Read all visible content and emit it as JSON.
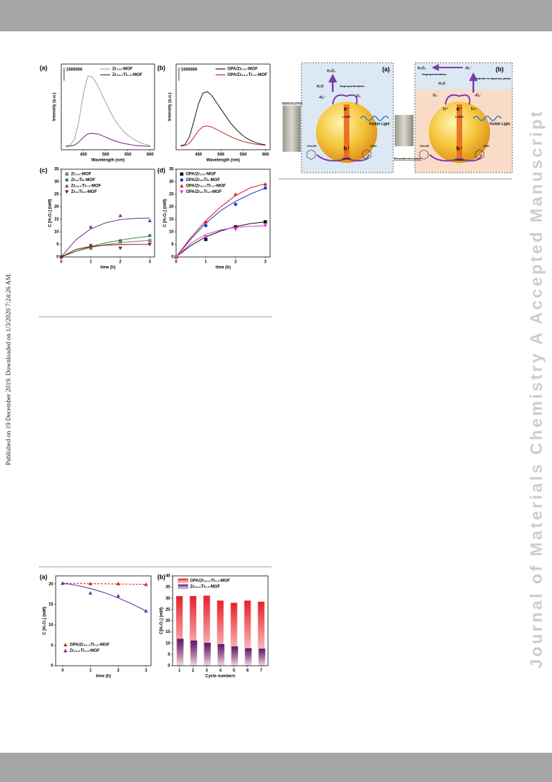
{
  "side_note": "Published on 19 December 2019. Downloaded on 1/3/2020 7:24:26 AM.",
  "watermark": "Journal of Materials Chemistry A Accepted Manuscript",
  "figure_1": {
    "panels": [
      {
        "type": "line",
        "label": "(a)",
        "xlabel": "Wavelength (nm)",
        "ylabel": "Intensity (a.u.)",
        "legend": "upper right",
        "scale_bar": {
          "value": 1000000,
          "label": "1000000"
        },
        "xlim": [
          400,
          610
        ],
        "xticks": [
          450,
          500,
          550,
          600
        ],
        "ylim": [
          0,
          6500000
        ],
        "x": [
          410,
          420,
          430,
          440,
          450,
          460,
          470,
          480,
          490,
          500,
          510,
          520,
          530,
          540,
          550,
          560,
          570,
          580,
          590,
          600
        ],
        "series": [
          {
            "name": "Zr₁₀₀-MOF",
            "color": "#a0a0a0",
            "values": [
              300000,
              350000,
              800000,
              2200000,
              4300000,
              5600000,
              5500000,
              5000000,
              4300000,
              3600000,
              2900000,
              2300000,
              1800000,
              1400000,
              1100000,
              850000,
              650000,
              500000,
              400000,
              330000
            ]
          },
          {
            "name": "Zr₉₂.₅Ti₇.₅-MOF",
            "color": "#6a1a7a",
            "values": [
              250000,
              270000,
              350000,
              600000,
              950000,
              1200000,
              1250000,
              1200000,
              1100000,
              950000,
              800000,
              680000,
              570000,
              480000,
              420000,
              360000,
              320000,
              290000,
              270000,
              250000
            ]
          }
        ]
      },
      {
        "type": "line",
        "label": "(b)",
        "xlabel": "Wavelength (nm)",
        "ylabel": "Intensity (a.u.)",
        "legend": "upper right",
        "scale_bar": {
          "value": 1000000,
          "label": "1000000"
        },
        "xlim": [
          400,
          610
        ],
        "xticks": [
          450,
          500,
          550,
          600
        ],
        "ylim": [
          0,
          6500000
        ],
        "x": [
          410,
          420,
          430,
          440,
          450,
          460,
          470,
          480,
          490,
          500,
          510,
          520,
          530,
          540,
          550,
          560,
          570,
          580,
          590,
          600
        ],
        "series": [
          {
            "name": "OPA/Zr₁₀₀-MOF",
            "color": "#111111",
            "values": [
              300000,
              400000,
              1000000,
              2200000,
              3500000,
              4300000,
              4400000,
              4100000,
              3600000,
              3100000,
              2600000,
              2100000,
              1700000,
              1350000,
              1050000,
              820000,
              650000,
              520000,
              430000,
              360000
            ]
          },
          {
            "name": "OPA/Zr₉₂.₅Ti₇.₅-MOF",
            "color": "#b8231e",
            "values": [
              270000,
              300000,
              500000,
              950000,
              1450000,
              1750000,
              1800000,
              1720000,
              1550000,
              1380000,
              1200000,
              1020000,
              870000,
              740000,
              630000,
              540000,
              470000,
              410000,
              370000,
              330000
            ]
          }
        ]
      },
      {
        "type": "scatter_fit",
        "label": "(c)",
        "xlabel": "time (h)",
        "ylabel": "C [H₂O₂] (mM)",
        "legend": "upper left",
        "xlim": [
          0,
          3.16
        ],
        "xticks": [
          0,
          1,
          2,
          3
        ],
        "ylim": [
          0,
          35
        ],
        "yticks": [
          0,
          5,
          10,
          15,
          20,
          25,
          30,
          35
        ],
        "x": [
          0,
          1,
          2,
          3
        ],
        "fit_x": [
          0,
          0.5,
          1,
          1.5,
          2,
          2.5,
          3
        ],
        "series": [
          {
            "name": "Zr₁₀₀-MOF",
            "color": "#808080",
            "marker": "square",
            "values": [
              0,
              3.5,
              6,
              6.5
            ],
            "fit": [
              0,
              2.2,
              3.8,
              4.9,
              5.7,
              6.2,
              6.6
            ]
          },
          {
            "name": "Zr₉₅Ti₅-MOF",
            "color": "#3a8a3a",
            "marker": "circle",
            "values": [
              0,
              4,
              6.5,
              8.5
            ],
            "fit": [
              0,
              2.3,
              4.1,
              5.6,
              6.7,
              7.6,
              8.3
            ]
          },
          {
            "name": "Zr₉₂.₅Ti₇.₅-MOF",
            "color": "#7b3a96",
            "marker": "triangle",
            "values": [
              0,
              12,
              16.5,
              14.5
            ],
            "fit": [
              0,
              6.9,
              11.2,
              13.6,
              14.9,
              15.4,
              15.5
            ]
          },
          {
            "name": "Zr₉₀Ti₁₀-MOF",
            "color": "#8b1a1a",
            "marker": "triangle-down",
            "values": [
              0,
              4.5,
              3.5,
              5
            ],
            "fit": [
              0,
              3,
              4.2,
              4.7,
              4.9,
              5,
              5
            ]
          }
        ]
      },
      {
        "type": "scatter_fit",
        "label": "(d)",
        "xlabel": "time (h)",
        "ylabel": "C [H₂O₂] (mM)",
        "legend": "upper left",
        "xlim": [
          0,
          3.16
        ],
        "xticks": [
          0,
          1,
          2,
          3
        ],
        "ylim": [
          0,
          35
        ],
        "yticks": [
          0,
          5,
          10,
          15,
          20,
          25,
          30,
          35
        ],
        "x": [
          0,
          1,
          2,
          3
        ],
        "fit_x": [
          0,
          0.5,
          1,
          1.5,
          2,
          2.5,
          3
        ],
        "series": [
          {
            "name": "OPA/Zr₁₀₀-MOF",
            "color": "#111111",
            "marker": "square",
            "values": [
              0,
              7,
              12,
              14
            ],
            "fit": [
              0,
              4.6,
              8,
              10.4,
              12.1,
              13.3,
              14
            ]
          },
          {
            "name": "OPA/Zr₉₅Ti₅-MOF",
            "color": "#1f3fd0",
            "marker": "circle",
            "values": [
              0,
              12.5,
              21,
              27.5
            ],
            "fit": [
              0,
              7.2,
              13.5,
              18.5,
              22.2,
              25.1,
              27.5
            ]
          },
          {
            "name": "OPA/Zr₉₂.₅Ti₇.₅-MOF",
            "color": "#d62020",
            "marker": "triangle",
            "values": [
              0,
              14,
              25,
              29
            ],
            "fit": [
              0,
              7.8,
              14.5,
              20,
              24.5,
              27.6,
              29.2
            ]
          },
          {
            "name": "OPA/Zr₉₀Ti₁₀-MOF",
            "color": "#e040e0",
            "marker": "triangle-down",
            "values": [
              0,
              8,
              11,
              12.5
            ],
            "fit": [
              0,
              5.5,
              9,
              10.8,
              11.8,
              12.2,
              12.4
            ]
          }
        ]
      }
    ]
  },
  "figure_2": {
    "panels": [
      {
        "label": "(a)",
        "product": "H₂O₂",
        "water": "H₂O",
        "process": "disproportionation",
        "radical": "•O₂⁻",
        "oxygen": "O₂",
        "electron": "e⁻",
        "lumo": "LUMO",
        "light": "Visible Light",
        "hole": "h⁺",
        "homo": "HOMO",
        "phase": "Aqueous phase",
        "reactant": "CH₂OH",
        "aldehyde": "CHO"
      },
      {
        "label": "(b)",
        "product": "H₂O₂",
        "process": "disproportionation",
        "radical_top": "•O₂⁻",
        "transfer": "transfer to aqueous phase",
        "water": "H₂O",
        "oxygen": "O₂",
        "radical": "•O₂⁻",
        "ti3": "Ti³⁺",
        "electron": "e⁻",
        "ti4": "Ti⁴⁺",
        "lumo": "LUMO",
        "light": "Visible Light",
        "hole": "h⁺",
        "homo": "HOMO",
        "phase": "Benzylalcohol phase",
        "reactant": "CH₂OH",
        "aldehyde": "CHO"
      }
    ]
  },
  "figure_3": {
    "panels": [
      {
        "type": "scatter_fit",
        "label": "(a)",
        "xlabel": "time (h)",
        "ylabel": "C [H₂O₂] (mM)",
        "legend": "lower left",
        "xlim": [
          -0.25,
          3.18
        ],
        "xticks": [
          0,
          1,
          2,
          3
        ],
        "ylim": [
          0,
          22
        ],
        "yticks": [
          0,
          5,
          10,
          15,
          20
        ],
        "x": [
          0,
          1,
          2,
          3
        ],
        "fit_x": [
          0,
          0.5,
          1,
          1.5,
          2,
          2.5,
          3
        ],
        "series": [
          {
            "name": "OPA/Zr₉₂.₅Ti₇.₅-MOF",
            "color": "#d42020",
            "marker": "triangle",
            "dash": true,
            "values": [
              20.2,
              20.1,
              20.1,
              19.9
            ],
            "fit": [
              20.2,
              20.15,
              20.1,
              20.05,
              20,
              19.95,
              19.9
            ]
          },
          {
            "name": "Zr₉₂.₅Ti₇.₅-MOF",
            "color": "#7030a0",
            "marker": "triangle",
            "values": [
              20.2,
              17.8,
              17.1,
              13.4
            ],
            "fit": [
              20.2,
              19.7,
              18.9,
              17.9,
              16.6,
              15.1,
              13.4
            ]
          }
        ]
      },
      {
        "type": "bar",
        "label": "(b)",
        "xlabel": "Cycle numbers",
        "ylabel": "C[H₂O₂] (mM)",
        "legend": "upper left",
        "ylim": [
          0,
          40
        ],
        "yticks": [
          0,
          5,
          10,
          15,
          20,
          25,
          30,
          35,
          40
        ],
        "categories": [
          "1",
          "2",
          "3",
          "4",
          "5",
          "6",
          "7"
        ],
        "series": [
          {
            "name": "OPA/Zr₉₂.₅Ti₇.₅-MOF",
            "color": "#e8202a",
            "values": [
              31,
              31,
              31.2,
              29,
              28,
              29,
              28.5
            ]
          },
          {
            "name": "Zr₉₂.₅Ti₇.₅-MOF",
            "color": "#5a1a6e",
            "values": [
              12,
              11.2,
              10.2,
              9.6,
              8.6,
              7.8,
              7.6
            ]
          }
        ]
      }
    ]
  }
}
